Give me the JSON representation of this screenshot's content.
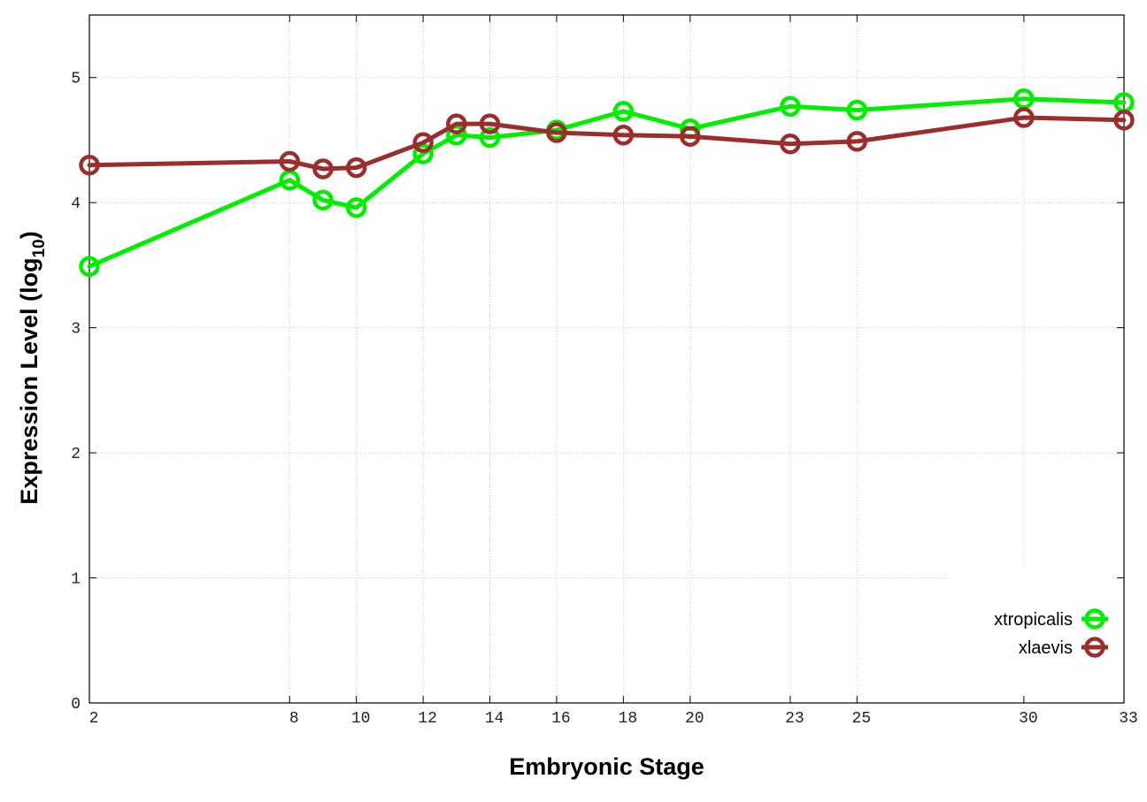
{
  "chart_data": {
    "type": "line",
    "xlabel": "Embryonic Stage",
    "ylabel": "Expression Level (log",
    "ylabel_subscript": "10",
    "ylabel_close": ")",
    "x": [
      2,
      8,
      9,
      10,
      12,
      13,
      14,
      16,
      18,
      20,
      23,
      25,
      30,
      33
    ],
    "x_ticks": [
      2,
      8,
      10,
      12,
      14,
      16,
      18,
      20,
      23,
      25,
      30,
      33
    ],
    "y_ticks": [
      0,
      1,
      2,
      3,
      4,
      5
    ],
    "xlim": [
      2,
      33
    ],
    "ylim": [
      0,
      5.5
    ],
    "grid": true,
    "legend_position": "bottom-right",
    "series": [
      {
        "name": "xtropicalis",
        "color": "#00ee00",
        "values": [
          3.49,
          4.18,
          4.02,
          3.96,
          4.39,
          4.54,
          4.52,
          4.58,
          4.73,
          4.59,
          4.77,
          4.74,
          4.83,
          4.8
        ]
      },
      {
        "name": "xlaevis",
        "color": "#9b2d2d",
        "values": [
          4.3,
          4.33,
          4.27,
          4.28,
          4.48,
          4.63,
          4.63,
          4.56,
          4.54,
          4.53,
          4.47,
          4.49,
          4.68,
          4.66
        ]
      }
    ]
  }
}
